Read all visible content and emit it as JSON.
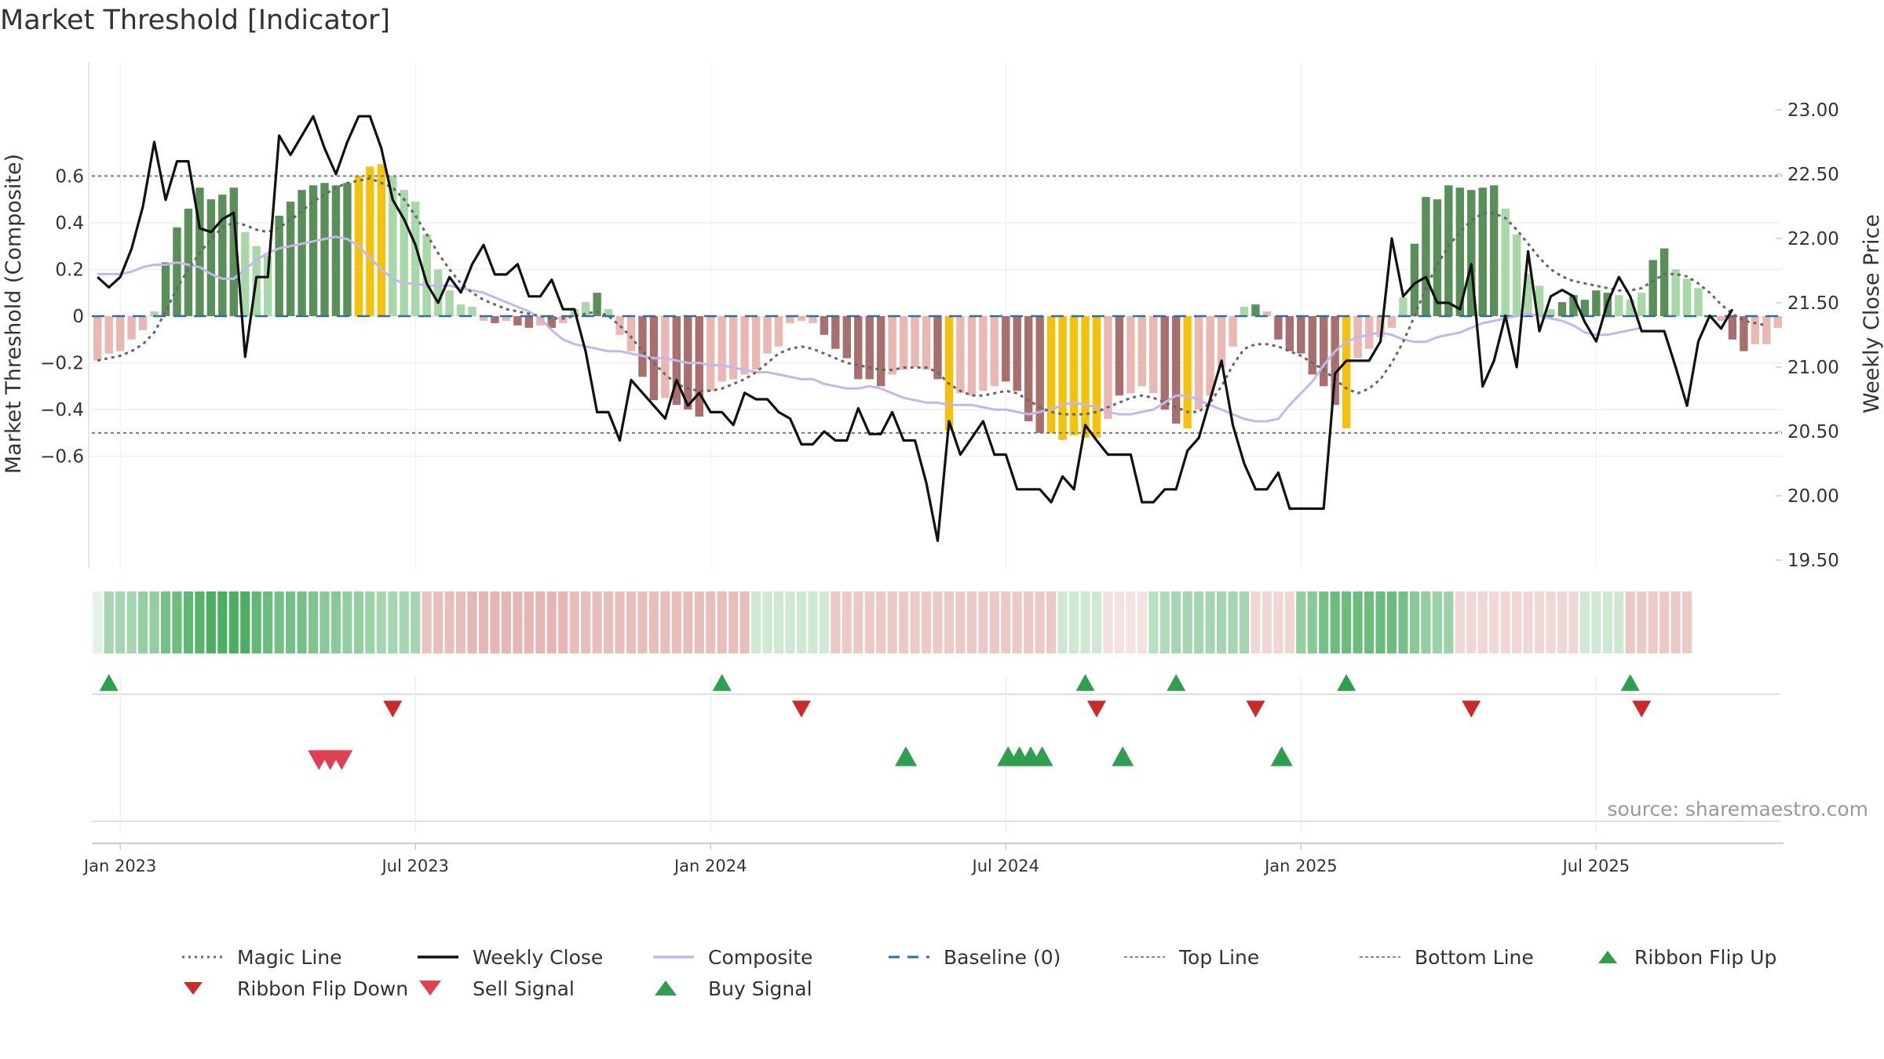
{
  "title": "Market Threshold [Indicator]",
  "source_label": "source: sharemaestro.com",
  "colors": {
    "bull_strong": "#5a8f5a",
    "bull_light": "#a8d8a8",
    "bear_strong": "#a86f6f",
    "bear_light": "#eab8b3",
    "extreme": "#f4c20d",
    "magic": "#666666",
    "close": "#111111",
    "composite": "#c3b8ec",
    "baseline": "#2f6f9f",
    "buy": "#2e9e4f",
    "flip_down": "#cc2a2a",
    "sell": "#e0404f"
  },
  "chart_data": {
    "type": "bar",
    "title": "Market Threshold [Indicator]",
    "ylabel": "Market Threshold (Composite)",
    "y2label": "Weekly Close Price",
    "ylim": [
      -0.72,
      0.72
    ],
    "y_ticks": [
      "0.6",
      "0.4",
      "0.2",
      "0",
      "−0.2",
      "−0.4",
      "−0.6"
    ],
    "y_tick_values": [
      0.6,
      0.4,
      0.2,
      0,
      -0.2,
      -0.4,
      -0.6
    ],
    "y2lim": [
      19.5,
      23.0
    ],
    "y2_ticks": [
      "23.00",
      "22.50",
      "22.00",
      "21.50",
      "21.00",
      "20.50",
      "20.00",
      "19.50"
    ],
    "y2_tick_values": [
      23.0,
      22.5,
      22.0,
      21.5,
      21.0,
      20.5,
      20.0,
      19.5
    ],
    "x_ticks": [
      "Jan 2023",
      "Jul 2023",
      "Jan 2024",
      "Jul 2024",
      "Jan 2025",
      "Jul 2025"
    ],
    "x_tick_weeks": [
      0,
      26,
      52,
      78,
      104,
      130
    ],
    "top_line": 0.6,
    "bottom_line": -0.5,
    "baseline": 0,
    "grid": true,
    "legend_position": "bottom",
    "week_start": -2,
    "composite_bars": [
      -0.19,
      -0.16,
      -0.15,
      -0.1,
      -0.06,
      0.02,
      0.23,
      0.38,
      0.46,
      0.55,
      0.5,
      0.52,
      0.55,
      0.36,
      0.3,
      0.26,
      0.43,
      0.49,
      0.54,
      0.56,
      0.57,
      0.56,
      0.57,
      0.6,
      0.64,
      0.65,
      0.6,
      0.54,
      0.49,
      0.35,
      0.2,
      0.11,
      0.05,
      0.04,
      -0.02,
      -0.03,
      -0.02,
      -0.04,
      -0.05,
      -0.04,
      -0.05,
      -0.03,
      0.03,
      0.06,
      0.1,
      0.03,
      -0.08,
      -0.15,
      -0.26,
      -0.36,
      -0.35,
      -0.38,
      -0.4,
      -0.43,
      -0.32,
      -0.28,
      -0.27,
      -0.25,
      -0.23,
      -0.16,
      -0.13,
      -0.03,
      -0.02,
      -0.03,
      -0.08,
      -0.14,
      -0.18,
      -0.27,
      -0.27,
      -0.3,
      -0.25,
      -0.23,
      -0.22,
      -0.23,
      -0.27,
      -0.49,
      -0.33,
      -0.34,
      -0.32,
      -0.3,
      -0.28,
      -0.32,
      -0.45,
      -0.5,
      -0.5,
      -0.53,
      -0.51,
      -0.52,
      -0.52,
      -0.44,
      -0.34,
      -0.33,
      -0.3,
      -0.33,
      -0.4,
      -0.46,
      -0.48,
      -0.4,
      -0.34,
      -0.22,
      -0.13,
      0.04,
      0.05,
      0.02,
      -0.1,
      -0.15,
      -0.16,
      -0.25,
      -0.3,
      -0.38,
      -0.48,
      -0.18,
      -0.14,
      -0.09,
      -0.05,
      0.08,
      0.31,
      0.51,
      0.5,
      0.56,
      0.55,
      0.54,
      0.55,
      0.56,
      0.46,
      0.35,
      0.18,
      0.13,
      0.03,
      0.06,
      0.09,
      0.07,
      0.11,
      0.1,
      0.09,
      0.07,
      0.1,
      0.24,
      0.29,
      0.2,
      0.16,
      0.12,
      0.0,
      -0.02,
      -0.1,
      -0.15,
      -0.12,
      -0.12,
      -0.05
    ],
    "composite_bar_colors": [
      "bear_light",
      "bear_light",
      "bear_light",
      "bear_light",
      "bear_light",
      "bull_light",
      "bull_strong",
      "bull_strong",
      "bull_strong",
      "bull_strong",
      "bull_strong",
      "bull_strong",
      "bull_strong",
      "bull_light",
      "bull_light",
      "bull_light",
      "bull_strong",
      "bull_strong",
      "bull_strong",
      "bull_strong",
      "bull_strong",
      "bull_strong",
      "bull_strong",
      "extreme",
      "extreme",
      "extreme",
      "bull_light",
      "bull_light",
      "bull_light",
      "bull_light",
      "bull_light",
      "bull_light",
      "bull_light",
      "bull_light",
      "bear_light",
      "bear_strong",
      "bear_light",
      "bear_strong",
      "bear_strong",
      "bear_light",
      "bear_strong",
      "bear_light",
      "bull_light",
      "bull_light",
      "bull_strong",
      "bull_light",
      "bear_light",
      "bear_light",
      "bear_strong",
      "bear_strong",
      "bear_light",
      "bear_strong",
      "bear_strong",
      "bear_strong",
      "bear_light",
      "bear_light",
      "bear_light",
      "bear_light",
      "bear_light",
      "bear_light",
      "bear_light",
      "bear_light",
      "bear_light",
      "bear_light",
      "bear_strong",
      "bear_strong",
      "bear_strong",
      "bear_strong",
      "bear_strong",
      "bear_strong",
      "bear_light",
      "bear_light",
      "bear_light",
      "bear_light",
      "bear_strong",
      "extreme",
      "bear_light",
      "bear_light",
      "bear_light",
      "bear_light",
      "bear_strong",
      "bear_strong",
      "bear_strong",
      "bear_strong",
      "extreme",
      "extreme",
      "extreme",
      "extreme",
      "extreme",
      "bear_light",
      "bear_strong",
      "bear_light",
      "bear_light",
      "bear_light",
      "bear_strong",
      "bear_strong",
      "extreme",
      "bear_light",
      "bear_light",
      "bear_light",
      "bear_light",
      "bull_light",
      "bull_strong",
      "bear_light",
      "bear_strong",
      "bear_strong",
      "bear_strong",
      "bear_strong",
      "bear_strong",
      "bear_strong",
      "extreme",
      "bear_light",
      "bear_light",
      "bear_light",
      "bear_light",
      "bull_light",
      "bull_strong",
      "bull_strong",
      "bull_strong",
      "bull_strong",
      "bull_strong",
      "bull_strong",
      "bull_strong",
      "bull_strong",
      "bull_light",
      "bull_light",
      "bull_light",
      "bull_light",
      "bull_light",
      "bull_strong",
      "bull_strong",
      "bull_strong",
      "bull_strong",
      "bull_strong",
      "bull_light",
      "bull_light",
      "bull_light",
      "bull_strong",
      "bull_strong",
      "bull_light",
      "bull_light",
      "bull_light",
      "bull_light",
      "bear_light",
      "bear_strong",
      "bear_strong",
      "bear_light",
      "bear_light",
      "bear_light"
    ],
    "series": [
      {
        "name": "Magic Line",
        "values": [
          -0.19,
          -0.18,
          -0.17,
          -0.15,
          -0.12,
          -0.07,
          0.02,
          0.12,
          0.2,
          0.27,
          0.33,
          0.38,
          0.4,
          0.39,
          0.37,
          0.36,
          0.38,
          0.41,
          0.45,
          0.49,
          0.52,
          0.55,
          0.57,
          0.58,
          0.59,
          0.57,
          0.55,
          0.5,
          0.43,
          0.35,
          0.27,
          0.2,
          0.14,
          0.1,
          0.07,
          0.05,
          0.03,
          0.02,
          0.01,
          0.0,
          -0.01,
          -0.01,
          0.0,
          0.01,
          0.02,
          0.0,
          -0.04,
          -0.09,
          -0.15,
          -0.2,
          -0.25,
          -0.29,
          -0.31,
          -0.32,
          -0.32,
          -0.31,
          -0.29,
          -0.27,
          -0.24,
          -0.2,
          -0.16,
          -0.14,
          -0.13,
          -0.14,
          -0.16,
          -0.18,
          -0.2,
          -0.21,
          -0.22,
          -0.23,
          -0.23,
          -0.22,
          -0.22,
          -0.22,
          -0.24,
          -0.29,
          -0.32,
          -0.34,
          -0.34,
          -0.33,
          -0.32,
          -0.33,
          -0.36,
          -0.39,
          -0.41,
          -0.42,
          -0.42,
          -0.42,
          -0.41,
          -0.39,
          -0.37,
          -0.35,
          -0.34,
          -0.35,
          -0.37,
          -0.39,
          -0.41,
          -0.41,
          -0.37,
          -0.3,
          -0.21,
          -0.14,
          -0.12,
          -0.12,
          -0.13,
          -0.15,
          -0.17,
          -0.2,
          -0.23,
          -0.27,
          -0.31,
          -0.33,
          -0.31,
          -0.27,
          -0.2,
          -0.11,
          0.0,
          0.12,
          0.22,
          0.3,
          0.36,
          0.41,
          0.44,
          0.44,
          0.42,
          0.37,
          0.31,
          0.25,
          0.2,
          0.17,
          0.15,
          0.14,
          0.13,
          0.12,
          0.11,
          0.11,
          0.12,
          0.15,
          0.18,
          0.18,
          0.17,
          0.14,
          0.1,
          0.05,
          0.01,
          -0.02,
          -0.03,
          -0.04
        ]
      },
      {
        "name": "Composite",
        "values": [
          0.18,
          0.18,
          0.18,
          0.19,
          0.21,
          0.22,
          0.22,
          0.23,
          0.22,
          0.21,
          0.18,
          0.16,
          0.16,
          0.2,
          0.24,
          0.27,
          0.29,
          0.3,
          0.31,
          0.32,
          0.33,
          0.34,
          0.33,
          0.3,
          0.25,
          0.2,
          0.16,
          0.14,
          0.14,
          0.13,
          0.13,
          0.13,
          0.12,
          0.11,
          0.1,
          0.08,
          0.06,
          0.04,
          0.02,
          -0.01,
          -0.06,
          -0.1,
          -0.12,
          -0.13,
          -0.14,
          -0.15,
          -0.15,
          -0.16,
          -0.17,
          -0.18,
          -0.18,
          -0.19,
          -0.2,
          -0.2,
          -0.21,
          -0.21,
          -0.22,
          -0.23,
          -0.24,
          -0.24,
          -0.25,
          -0.26,
          -0.27,
          -0.27,
          -0.29,
          -0.3,
          -0.31,
          -0.31,
          -0.3,
          -0.31,
          -0.33,
          -0.35,
          -0.36,
          -0.37,
          -0.37,
          -0.38,
          -0.38,
          -0.38,
          -0.39,
          -0.4,
          -0.4,
          -0.41,
          -0.42,
          -0.41,
          -0.4,
          -0.38,
          -0.37,
          -0.38,
          -0.39,
          -0.41,
          -0.42,
          -0.42,
          -0.41,
          -0.4,
          -0.37,
          -0.34,
          -0.34,
          -0.36,
          -0.38,
          -0.4,
          -0.42,
          -0.44,
          -0.45,
          -0.45,
          -0.44,
          -0.38,
          -0.33,
          -0.28,
          -0.21,
          -0.15,
          -0.11,
          -0.09,
          -0.08,
          -0.07,
          -0.08,
          -0.1,
          -0.11,
          -0.11,
          -0.09,
          -0.08,
          -0.07,
          -0.05,
          -0.03,
          -0.02,
          -0.01,
          0.0,
          0.01,
          0.0,
          -0.01,
          -0.02,
          -0.04,
          -0.07,
          -0.08,
          -0.08,
          -0.07,
          -0.06,
          -0.05
        ]
      },
      {
        "name": "Weekly Close",
        "values": [
          21.7,
          21.62,
          21.7,
          21.92,
          22.25,
          22.75,
          22.3,
          22.6,
          22.6,
          22.08,
          22.05,
          22.15,
          22.2,
          21.08,
          21.7,
          21.7,
          22.8,
          22.65,
          22.8,
          22.95,
          22.7,
          22.5,
          22.75,
          22.95,
          22.95,
          22.7,
          22.3,
          22.15,
          21.95,
          21.65,
          21.5,
          21.7,
          21.58,
          21.8,
          21.95,
          21.72,
          21.72,
          21.8,
          21.55,
          21.55,
          21.68,
          21.45,
          21.45,
          21.12,
          20.65,
          20.65,
          20.43,
          20.9,
          20.8,
          20.7,
          20.6,
          20.9,
          20.7,
          20.8,
          20.65,
          20.65,
          20.55,
          20.8,
          20.75,
          20.75,
          20.65,
          20.6,
          20.4,
          20.4,
          20.5,
          20.43,
          20.43,
          20.68,
          20.48,
          20.48,
          20.65,
          20.43,
          20.43,
          20.1,
          19.65,
          20.58,
          20.32,
          20.45,
          20.58,
          20.32,
          20.32,
          20.05,
          20.05,
          20.05,
          19.95,
          20.15,
          20.05,
          20.55,
          20.43,
          20.32,
          20.32,
          20.32,
          19.95,
          19.95,
          20.05,
          20.05,
          20.35,
          20.45,
          20.75,
          21.05,
          20.55,
          20.25,
          20.05,
          20.05,
          20.18,
          19.9,
          19.9,
          19.9,
          19.9,
          20.95,
          21.05,
          21.05,
          21.05,
          21.2,
          22.0,
          21.55,
          21.65,
          21.7,
          21.5,
          21.5,
          21.45,
          21.8,
          20.85,
          21.05,
          21.4,
          21.0,
          21.9,
          21.28,
          21.55,
          21.6,
          21.55,
          21.35,
          21.2,
          21.5,
          21.7,
          21.55,
          21.28,
          21.28,
          21.28,
          21.0,
          20.7,
          21.2,
          21.4,
          21.3,
          21.45
        ],
        "y_axis": "right"
      }
    ],
    "ribbon": [
      0.15,
      0.45,
      0.45,
      0.45,
      0.55,
      0.55,
      0.7,
      0.75,
      0.8,
      0.85,
      0.9,
      0.9,
      0.9,
      0.9,
      0.8,
      0.75,
      0.7,
      0.7,
      0.7,
      0.65,
      0.6,
      0.6,
      0.55,
      0.55,
      0.5,
      0.45,
      0.45,
      0.45,
      0.45,
      -0.5,
      -0.55,
      -0.55,
      -0.55,
      -0.6,
      -0.6,
      -0.6,
      -0.6,
      -0.6,
      -0.6,
      -0.6,
      -0.6,
      -0.6,
      -0.55,
      -0.55,
      -0.55,
      -0.55,
      -0.55,
      -0.55,
      -0.55,
      -0.55,
      -0.55,
      -0.55,
      -0.55,
      -0.55,
      -0.55,
      -0.55,
      -0.55,
      -0.55,
      0.25,
      0.25,
      0.25,
      0.25,
      0.25,
      0.25,
      0.25,
      -0.45,
      -0.45,
      -0.45,
      -0.45,
      -0.45,
      -0.45,
      -0.45,
      -0.45,
      -0.45,
      -0.45,
      -0.45,
      -0.45,
      -0.45,
      -0.45,
      -0.45,
      -0.45,
      -0.45,
      -0.45,
      -0.45,
      -0.45,
      0.25,
      0.25,
      0.25,
      0.25,
      -0.25,
      -0.25,
      -0.25,
      -0.25,
      0.35,
      0.4,
      0.45,
      0.45,
      0.45,
      0.45,
      0.45,
      0.45,
      0.45,
      -0.35,
      -0.35,
      -0.35,
      -0.35,
      0.55,
      0.6,
      0.7,
      0.75,
      0.75,
      0.75,
      0.75,
      0.75,
      0.75,
      0.7,
      0.6,
      0.55,
      0.5,
      0.5,
      -0.35,
      -0.35,
      -0.35,
      -0.35,
      -0.35,
      -0.35,
      -0.35,
      -0.35,
      -0.35,
      -0.35,
      -0.35,
      0.25,
      0.25,
      0.25,
      0.25,
      -0.45,
      -0.45,
      -0.45,
      -0.45,
      -0.45,
      -0.45
    ],
    "ribbon_flip_up_weeks": [
      -1,
      53,
      85,
      93,
      108,
      133
    ],
    "ribbon_flip_down_weeks": [
      24,
      60,
      86,
      100,
      119,
      134
    ],
    "sell_signal_weeks": [
      17.5,
      18.5,
      19.5
    ],
    "buy_signal_weeks": [
      69.2,
      78.2,
      79.2,
      80.2,
      81.2,
      88.3,
      102.3
    ]
  },
  "legend": [
    {
      "label": "Magic Line",
      "icon": "dotted-line"
    },
    {
      "label": "Weekly Close",
      "icon": "solid-line"
    },
    {
      "label": "Composite",
      "icon": "light-line"
    },
    {
      "label": "Baseline (0)",
      "icon": "dashed-line"
    },
    {
      "label": "Top Line",
      "icon": "thin-dotted-line"
    },
    {
      "label": "Bottom Line",
      "icon": "thin-dotted-line"
    },
    {
      "label": "Ribbon Flip Up",
      "icon": "triangle-up"
    },
    {
      "label": "Ribbon Flip Down",
      "icon": "triangle-down"
    },
    {
      "label": "Sell Signal",
      "icon": "triangle-down-large"
    },
    {
      "label": "Buy Signal",
      "icon": "triangle-up-large"
    }
  ]
}
